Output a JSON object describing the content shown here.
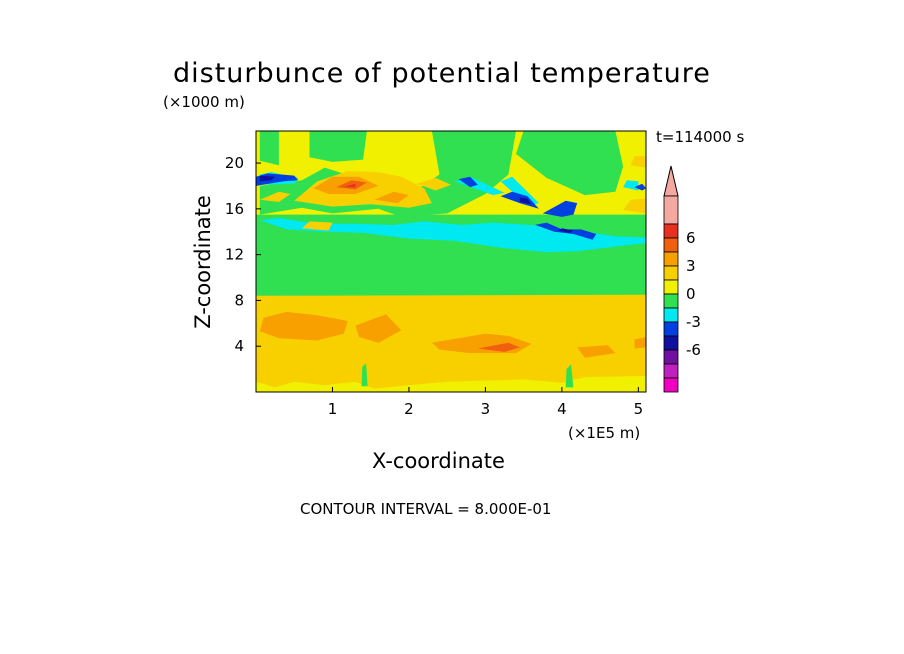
{
  "chart_data": {
    "type": "heatmap",
    "title": "disturbunce of potential temperature",
    "xlabel": "X-coordinate",
    "ylabel": "Z-coordinate",
    "x_unit": "(×1E5 m)",
    "y_unit": "(×1000 m)",
    "time_label": "t=114000 s",
    "footer": "CONTOUR INTERVAL = 8.000E-01",
    "xlim": [
      0,
      5.1
    ],
    "ylim": [
      0,
      22.8
    ],
    "x_ticks": [
      1,
      2,
      3,
      4,
      5
    ],
    "y_ticks": [
      4,
      8,
      12,
      16,
      20
    ],
    "colorbar": {
      "labels": [
        6,
        3,
        0,
        -3,
        -6
      ],
      "colors": [
        "#f4a8a0",
        "#e83020",
        "#f06010",
        "#f8a000",
        "#f8d000",
        "#f0f000",
        "#30e050",
        "#00e8f0",
        "#0040e0",
        "#1010a0",
        "#7010a0",
        "#c020c0",
        "#f000c0"
      ]
    },
    "levels": {
      "-4": "#c020c0",
      "-3": "#1010a0",
      "-2": "#0040e0",
      "-1": "#00e8f0",
      "0": "#30e050",
      "1": "#f0f000",
      "2": "#f8d000",
      "3": "#f8a000",
      "4": "#f06010",
      "5": "#e83020"
    },
    "regions": [
      {
        "level": 1,
        "xy": [
          [
            0,
            0
          ],
          [
            5.1,
            0
          ],
          [
            5.1,
            22.8
          ],
          [
            0,
            22.8
          ]
        ]
      },
      {
        "level": 0,
        "xy": [
          [
            0,
            8.3
          ],
          [
            5.1,
            8.3
          ],
          [
            5.1,
            15.5
          ],
          [
            0,
            15.5
          ]
        ]
      },
      {
        "level": 0,
        "xy": [
          [
            0.05,
            15.5
          ],
          [
            0.6,
            16.1
          ],
          [
            1.0,
            15.6
          ],
          [
            1.6,
            16.0
          ],
          [
            1.9,
            15.3
          ],
          [
            2.5,
            15.6
          ],
          [
            3.0,
            17.3
          ],
          [
            3.3,
            19.0
          ],
          [
            3.4,
            22.8
          ],
          [
            2.3,
            22.8
          ],
          [
            2.4,
            19.0
          ],
          [
            2.0,
            17.2
          ],
          [
            1.5,
            18.3
          ],
          [
            0.9,
            19.6
          ],
          [
            0.6,
            18.5
          ],
          [
            0.05,
            18.0
          ]
        ]
      },
      {
        "level": 0,
        "xy": [
          [
            0.7,
            22.8
          ],
          [
            0.7,
            20.5
          ],
          [
            1.0,
            20.1
          ],
          [
            1.4,
            20.3
          ],
          [
            1.45,
            22.8
          ]
        ]
      },
      {
        "level": 0,
        "xy": [
          [
            3.4,
            20.8
          ],
          [
            3.8,
            18.7
          ],
          [
            4.3,
            17.2
          ],
          [
            4.7,
            17.5
          ],
          [
            4.8,
            19.7
          ],
          [
            4.7,
            22.8
          ],
          [
            3.5,
            22.8
          ]
        ]
      },
      {
        "level": 0,
        "xy": [
          [
            0.05,
            22.8
          ],
          [
            0.05,
            20.2
          ],
          [
            0.3,
            19.8
          ],
          [
            0.3,
            22.8
          ]
        ]
      },
      {
        "level": -1,
        "xy": [
          [
            0.05,
            15.0
          ],
          [
            0.4,
            14.2
          ],
          [
            0.9,
            14.0
          ],
          [
            1.4,
            13.9
          ],
          [
            2.0,
            13.4
          ],
          [
            2.6,
            13.2
          ],
          [
            3.2,
            12.6
          ],
          [
            3.8,
            12.2
          ],
          [
            4.2,
            12.3
          ],
          [
            4.7,
            12.7
          ],
          [
            5.1,
            13.0
          ],
          [
            5.1,
            13.5
          ],
          [
            4.7,
            13.6
          ],
          [
            4.3,
            14.0
          ],
          [
            3.8,
            14.5
          ],
          [
            3.1,
            14.8
          ],
          [
            2.7,
            14.6
          ],
          [
            2.2,
            14.9
          ],
          [
            1.8,
            14.6
          ],
          [
            1.3,
            14.7
          ],
          [
            0.8,
            14.7
          ],
          [
            0.3,
            15.2
          ]
        ]
      },
      {
        "level": -1,
        "xy": [
          [
            0.05,
            18.1
          ],
          [
            0.5,
            18.2
          ],
          [
            0.55,
            18.7
          ],
          [
            0.2,
            19.2
          ],
          [
            0.05,
            19.0
          ]
        ]
      },
      {
        "level": -1,
        "xy": [
          [
            2.6,
            18.4
          ],
          [
            3.1,
            17.2
          ],
          [
            3.25,
            17.4
          ],
          [
            2.8,
            18.8
          ]
        ]
      },
      {
        "level": -1,
        "xy": [
          [
            3.2,
            18.4
          ],
          [
            3.55,
            16.3
          ],
          [
            3.7,
            16.5
          ],
          [
            3.35,
            18.8
          ]
        ]
      },
      {
        "level": -1,
        "xy": [
          [
            4.8,
            17.9
          ],
          [
            5.0,
            17.6
          ],
          [
            5.0,
            18.4
          ],
          [
            4.85,
            18.5
          ]
        ]
      },
      {
        "level": -2,
        "xy": [
          [
            0.0,
            18.0
          ],
          [
            0.35,
            18.4
          ],
          [
            0.55,
            18.5
          ],
          [
            0.5,
            18.9
          ],
          [
            0.15,
            19.1
          ],
          [
            0.0,
            18.8
          ]
        ]
      },
      {
        "level": -2,
        "xy": [
          [
            3.2,
            17.1
          ],
          [
            3.45,
            16.5
          ],
          [
            3.7,
            16.0
          ],
          [
            3.55,
            17.1
          ],
          [
            3.35,
            17.5
          ]
        ]
      },
      {
        "level": -2,
        "xy": [
          [
            3.75,
            15.6
          ],
          [
            4.0,
            15.3
          ],
          [
            4.15,
            15.5
          ],
          [
            4.2,
            16.5
          ],
          [
            4.05,
            16.7
          ]
        ]
      },
      {
        "level": -2,
        "xy": [
          [
            3.65,
            14.6
          ],
          [
            3.9,
            14.0
          ],
          [
            4.15,
            13.8
          ],
          [
            4.4,
            13.3
          ],
          [
            4.45,
            13.8
          ],
          [
            4.25,
            14.2
          ],
          [
            4.0,
            14.2
          ],
          [
            3.8,
            14.8
          ]
        ]
      },
      {
        "level": -2,
        "xy": [
          [
            2.65,
            18.6
          ],
          [
            2.8,
            17.9
          ],
          [
            2.9,
            18.1
          ],
          [
            2.8,
            18.8
          ]
        ]
      },
      {
        "level": -2,
        "xy": [
          [
            4.95,
            17.9
          ],
          [
            5.05,
            17.6
          ],
          [
            5.1,
            17.8
          ],
          [
            5.05,
            18.2
          ]
        ]
      },
      {
        "level": -3,
        "xy": [
          [
            0.05,
            18.4
          ],
          [
            0.2,
            18.5
          ],
          [
            0.25,
            18.8
          ],
          [
            0.05,
            18.9
          ]
        ]
      },
      {
        "level": -3,
        "xy": [
          [
            3.45,
            16.6
          ],
          [
            3.6,
            16.4
          ],
          [
            3.55,
            16.9
          ],
          [
            3.45,
            17.0
          ]
        ]
      },
      {
        "level": -3,
        "xy": [
          [
            3.95,
            14.1
          ],
          [
            4.1,
            13.9
          ],
          [
            4.15,
            14.1
          ],
          [
            4.0,
            14.3
          ]
        ]
      },
      {
        "level": 2,
        "xy": [
          [
            0.0,
            8.4
          ],
          [
            5.1,
            8.5
          ],
          [
            5.1,
            1.4
          ],
          [
            4.3,
            1.3
          ],
          [
            4.0,
            0.8
          ],
          [
            3.5,
            1.1
          ],
          [
            3.0,
            1.0
          ],
          [
            2.5,
            0.9
          ],
          [
            2.0,
            0.6
          ],
          [
            1.55,
            0.3
          ],
          [
            1.3,
            0.9
          ],
          [
            0.9,
            0.6
          ],
          [
            0.5,
            0.9
          ],
          [
            0.25,
            0.4
          ],
          [
            0.0,
            0.9
          ]
        ]
      },
      {
        "level": 2,
        "xy": [
          [
            0.5,
            16.7
          ],
          [
            0.8,
            18.4
          ],
          [
            1.2,
            19.3
          ],
          [
            1.6,
            19.2
          ],
          [
            1.9,
            18.8
          ],
          [
            2.2,
            17.8
          ],
          [
            2.3,
            16.5
          ],
          [
            2.0,
            16.1
          ],
          [
            1.5,
            16.4
          ],
          [
            1.0,
            16.2
          ]
        ]
      },
      {
        "level": 2,
        "xy": [
          [
            0.05,
            16.8
          ],
          [
            0.3,
            17.5
          ],
          [
            0.45,
            17.3
          ],
          [
            0.3,
            16.6
          ]
        ]
      },
      {
        "level": 2,
        "xy": [
          [
            0.6,
            14.3
          ],
          [
            0.95,
            14.1
          ],
          [
            1.0,
            14.8
          ],
          [
            0.7,
            14.9
          ]
        ]
      },
      {
        "level": 2,
        "xy": [
          [
            2.1,
            18.2
          ],
          [
            2.35,
            17.6
          ],
          [
            2.55,
            18.1
          ],
          [
            2.35,
            18.7
          ]
        ]
      },
      {
        "level": 2,
        "xy": [
          [
            4.8,
            15.9
          ],
          [
            5.1,
            15.6
          ],
          [
            5.1,
            16.9
          ],
          [
            4.9,
            16.8
          ]
        ]
      },
      {
        "level": 2,
        "xy": [
          [
            4.9,
            19.8
          ],
          [
            5.1,
            19.6
          ],
          [
            5.1,
            20.6
          ],
          [
            4.95,
            20.6
          ]
        ]
      },
      {
        "level": 3,
        "xy": [
          [
            0.1,
            6.5
          ],
          [
            0.4,
            7.0
          ],
          [
            0.8,
            6.7
          ],
          [
            1.2,
            6.2
          ],
          [
            1.15,
            5.1
          ],
          [
            0.8,
            4.5
          ],
          [
            0.3,
            4.7
          ],
          [
            0.05,
            5.3
          ]
        ]
      },
      {
        "level": 3,
        "xy": [
          [
            1.3,
            5.8
          ],
          [
            1.7,
            6.8
          ],
          [
            1.9,
            5.4
          ],
          [
            1.6,
            4.3
          ],
          [
            1.35,
            4.8
          ]
        ]
      },
      {
        "level": 3,
        "xy": [
          [
            2.3,
            4.3
          ],
          [
            3.0,
            5.1
          ],
          [
            3.3,
            4.9
          ],
          [
            3.6,
            4.2
          ],
          [
            3.4,
            3.4
          ],
          [
            2.8,
            3.4
          ],
          [
            2.4,
            3.7
          ]
        ]
      },
      {
        "level": 3,
        "xy": [
          [
            4.2,
            3.9
          ],
          [
            4.6,
            4.1
          ],
          [
            4.7,
            3.4
          ],
          [
            4.3,
            3.0
          ]
        ]
      },
      {
        "level": 3,
        "xy": [
          [
            4.95,
            3.8
          ],
          [
            5.1,
            3.9
          ],
          [
            5.1,
            4.8
          ],
          [
            4.95,
            4.6
          ]
        ]
      },
      {
        "level": 3,
        "xy": [
          [
            0.75,
            17.8
          ],
          [
            1.0,
            18.8
          ],
          [
            1.35,
            18.8
          ],
          [
            1.6,
            18.0
          ],
          [
            1.3,
            17.3
          ],
          [
            0.95,
            17.3
          ]
        ]
      },
      {
        "level": 3,
        "xy": [
          [
            1.55,
            16.8
          ],
          [
            1.8,
            17.5
          ],
          [
            2.0,
            17.2
          ],
          [
            1.85,
            16.5
          ]
        ]
      },
      {
        "level": 4,
        "xy": [
          [
            1.05,
            17.9
          ],
          [
            1.25,
            18.5
          ],
          [
            1.45,
            18.3
          ],
          [
            1.3,
            17.7
          ]
        ]
      },
      {
        "level": 4,
        "xy": [
          [
            2.9,
            3.8
          ],
          [
            3.3,
            4.3
          ],
          [
            3.45,
            3.9
          ],
          [
            3.25,
            3.5
          ]
        ]
      },
      {
        "level": 5,
        "xy": [
          [
            1.15,
            17.9
          ],
          [
            1.3,
            18.2
          ],
          [
            1.3,
            17.9
          ]
        ]
      },
      {
        "level": 0,
        "xy": [
          [
            1.38,
            0.5
          ],
          [
            1.46,
            0.5
          ],
          [
            1.44,
            2.5
          ],
          [
            1.39,
            2.2
          ]
        ]
      },
      {
        "level": 0,
        "xy": [
          [
            4.05,
            0.4
          ],
          [
            4.15,
            0.4
          ],
          [
            4.12,
            2.4
          ],
          [
            4.06,
            2.0
          ]
        ]
      }
    ]
  }
}
